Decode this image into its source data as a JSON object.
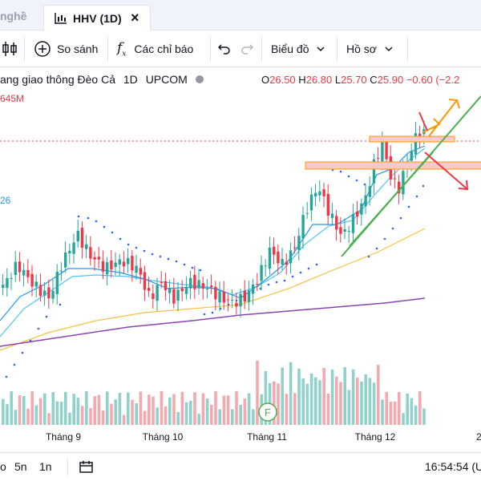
{
  "tabs": {
    "previous_label": "nghề",
    "active_label": "HHV (1D)",
    "close_symbol": "×"
  },
  "toolbar": {
    "compare_label": "So sánh",
    "indicators_label": "Các chỉ báo",
    "chart_type_label": "Biểu đồ",
    "profile_label": "Hồ sơ"
  },
  "legend": {
    "name": "ang giao thông Đèo Cả",
    "interval": "1D",
    "exchange": "UPCOM",
    "open_label": "O",
    "open": "26.50",
    "high_label": "H",
    "high": "26.80",
    "low_label": "L",
    "low": "25.70",
    "close_label": "C",
    "close": "25.90",
    "change": "−0.60 (−2.2",
    "volume_text": "645M",
    "indicator_text": "26"
  },
  "axis": {
    "month_labels": [
      "Tháng 9",
      "Tháng 10",
      "Tháng 11",
      "Tháng 12"
    ],
    "edge_label": "2"
  },
  "bottom": {
    "ranges": [
      "5n",
      "1n"
    ],
    "range_prefix": "o",
    "clock": "16:54:54 (U"
  },
  "colors": {
    "up": "#26a69a",
    "down": "#f23645",
    "volume_up": "#91d1cb",
    "volume_down": "#f4a9af",
    "ma_fast": "#2196f3",
    "ma_mid": "#4fc3f7",
    "ma_slow": "#f5c342",
    "ma_long": "#8e44ad",
    "psar": "#2962ff",
    "trend": "#4caf50",
    "resistance_fill": "#f8c9cc",
    "resistance_border": "#ff9800",
    "arrow_up": "#ff9800",
    "arrow_down": "#f23645"
  },
  "icons": {
    "tab_icon": "candlestick-chart-icon",
    "compare": "plus-circle-icon",
    "indicators": "fx-icon",
    "undo": "undo-icon",
    "redo": "redo-icon",
    "dropdown": "chevron-down-icon",
    "calendar": "calendar-icon",
    "event_marker_text": "F"
  }
}
